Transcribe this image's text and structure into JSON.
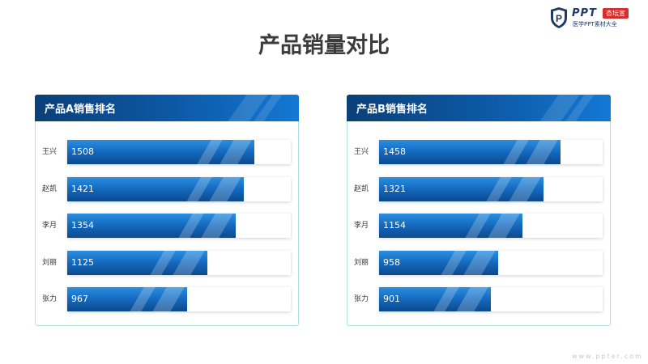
{
  "logo": {
    "brand": "PPT",
    "tag": "杏坛宣",
    "subtitle": "医学PPT素材大全",
    "icon": "shield-p-icon"
  },
  "title": "产品销量对比",
  "watermark": "www.ppter.com",
  "colors": {
    "bar_dark": "#0b4a8d",
    "bar_light": "#2a8fe0",
    "header": "#0d5aa7",
    "border": "#aee0e4"
  },
  "chart_data": [
    {
      "type": "bar",
      "orientation": "horizontal",
      "title": "产品A销售排名",
      "categories": [
        "王兴",
        "赵凯",
        "李月",
        "刘丽",
        "张力"
      ],
      "values": [
        1508,
        1421,
        1354,
        1125,
        967
      ],
      "xlim": [
        0,
        1800
      ],
      "grid": false,
      "legend": "none"
    },
    {
      "type": "bar",
      "orientation": "horizontal",
      "title": "产品B销售排名",
      "categories": [
        "王兴",
        "赵凯",
        "李月",
        "刘丽",
        "张力"
      ],
      "values": [
        1458,
        1321,
        1154,
        958,
        901
      ],
      "xlim": [
        0,
        1800
      ],
      "grid": false,
      "legend": "none"
    }
  ]
}
